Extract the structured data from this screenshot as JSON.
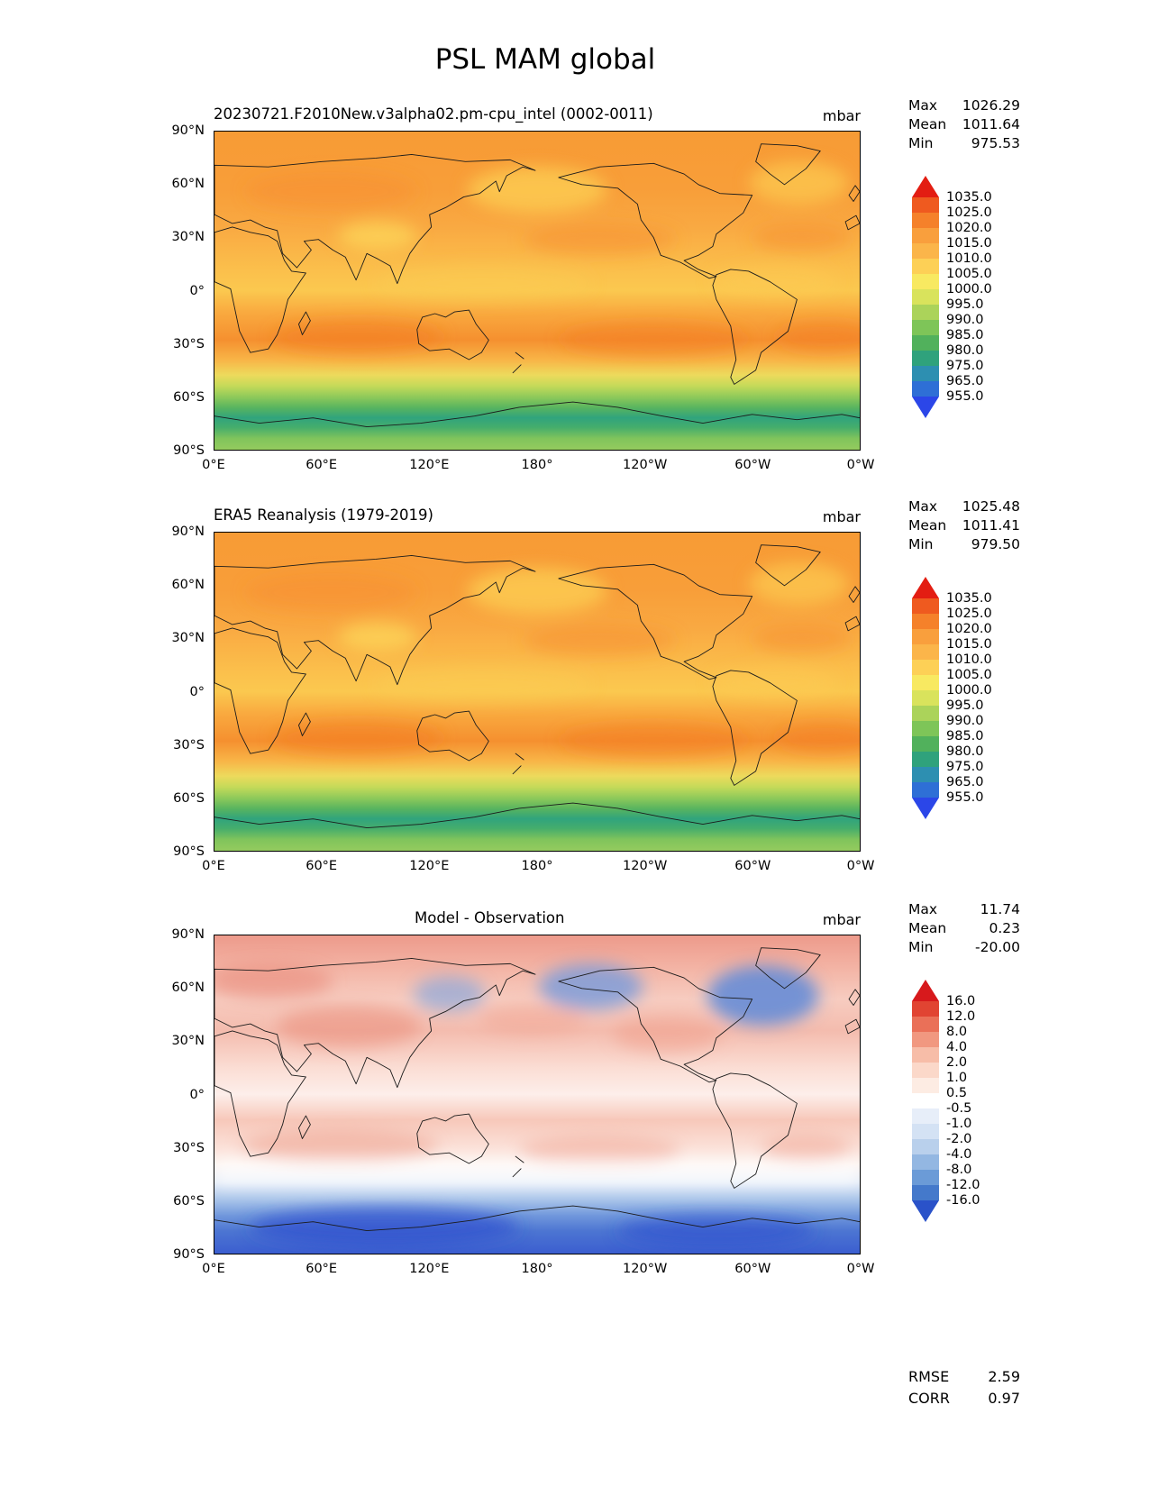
{
  "page": {
    "title": "PSL MAM global"
  },
  "axes": {
    "x_ticks": [
      "0°E",
      "60°E",
      "120°E",
      "180°",
      "120°W",
      "60°W",
      "0°W"
    ],
    "y_ticks": [
      "90°N",
      "60°N",
      "30°N",
      "0°",
      "30°S",
      "60°S",
      "90°S"
    ]
  },
  "panels": [
    {
      "title": "20230721.F2010New.v3alpha02.pm-cpu_intel (0002-0011)",
      "units": "mbar",
      "stats": [
        {
          "label": "Max",
          "value": "1026.29"
        },
        {
          "label": "Mean",
          "value": "1011.64"
        },
        {
          "label": "Min",
          "value": "975.53"
        }
      ],
      "colorbar": {
        "levels": [
          "1035.0",
          "1025.0",
          "1020.0",
          "1015.0",
          "1010.0",
          "1005.0",
          "1000.0",
          "995.0",
          "990.0",
          "985.0",
          "980.0",
          "975.0",
          "965.0",
          "955.0"
        ],
        "colors": [
          "#e31d12",
          "#ef5a1f",
          "#f5812a",
          "#f99f3d",
          "#fbb54a",
          "#fdd056",
          "#f8e961",
          "#d9e35c",
          "#abd35a",
          "#7ec558",
          "#51b15c",
          "#2fa27c",
          "#2d8fb1",
          "#2e6fd6",
          "#2b46e8"
        ]
      }
    },
    {
      "title": "ERA5 Reanalysis (1979-2019)",
      "units": "mbar",
      "stats": [
        {
          "label": "Max",
          "value": "1025.48"
        },
        {
          "label": "Mean",
          "value": "1011.41"
        },
        {
          "label": "Min",
          "value": "979.50"
        }
      ],
      "colorbar": {
        "levels": [
          "1035.0",
          "1025.0",
          "1020.0",
          "1015.0",
          "1010.0",
          "1005.0",
          "1000.0",
          "995.0",
          "990.0",
          "985.0",
          "980.0",
          "975.0",
          "965.0",
          "955.0"
        ],
        "colors": [
          "#e31d12",
          "#ef5a1f",
          "#f5812a",
          "#f99f3d",
          "#fbb54a",
          "#fdd056",
          "#f8e961",
          "#d9e35c",
          "#abd35a",
          "#7ec558",
          "#51b15c",
          "#2fa27c",
          "#2d8fb1",
          "#2e6fd6",
          "#2b46e8"
        ]
      }
    },
    {
      "title": "Model - Observation",
      "units": "mbar",
      "stats": [
        {
          "label": "Max",
          "value": "11.74"
        },
        {
          "label": "Mean",
          "value": "0.23"
        },
        {
          "label": "Min",
          "value": "-20.00"
        }
      ],
      "colorbar": {
        "levels": [
          "16.0",
          "12.0",
          "8.0",
          "4.0",
          "2.0",
          "1.0",
          "0.5",
          "-0.5",
          "-1.0",
          "-2.0",
          "-4.0",
          "-8.0",
          "-12.0",
          "-16.0"
        ],
        "colors": [
          "#d7191c",
          "#e14432",
          "#ea7058",
          "#f19880",
          "#f7bda8",
          "#fbd8c9",
          "#fdece3",
          "#ffffff",
          "#e7eef9",
          "#d4e2f4",
          "#b9d0ec",
          "#93b7e2",
          "#6b9bd7",
          "#4479cb",
          "#2a52c9"
        ]
      },
      "metrics": [
        {
          "label": "RMSE",
          "value": "2.59"
        },
        {
          "label": "CORR",
          "value": "0.97"
        }
      ]
    }
  ],
  "chart_data": [
    {
      "type": "heatmap",
      "subtype": "filled-contour-global-map",
      "title": "20230721.F2010New.v3alpha02.pm-cpu_intel (0002-0011)",
      "variable": "PSL",
      "season": "MAM",
      "units": "mbar",
      "projection": "equirectangular",
      "lon_range": [
        0,
        360
      ],
      "lat_range": [
        -90,
        90
      ],
      "x_tick_labels": [
        "0°E",
        "60°E",
        "120°E",
        "180°",
        "120°W",
        "60°W",
        "0°W"
      ],
      "y_tick_labels": [
        "90°N",
        "60°N",
        "30°N",
        "0°",
        "30°S",
        "60°S",
        "90°S"
      ],
      "contour_levels": [
        955,
        965,
        975,
        980,
        985,
        990,
        995,
        1000,
        1005,
        1010,
        1015,
        1020,
        1025,
        1035
      ],
      "stats": {
        "max": 1026.29,
        "mean": 1011.64,
        "min": 975.53
      },
      "approx_zonal_mean": {
        "lat": [
          90,
          60,
          30,
          0,
          -30,
          -45,
          -60,
          -70,
          -80,
          -90
        ],
        "value_mbar": [
          1014,
          1014,
          1017,
          1009,
          1018,
          1005,
          987,
          977,
          984,
          991
        ]
      }
    },
    {
      "type": "heatmap",
      "subtype": "filled-contour-global-map",
      "title": "ERA5 Reanalysis (1979-2019)",
      "variable": "PSL",
      "season": "MAM",
      "units": "mbar",
      "projection": "equirectangular",
      "lon_range": [
        0,
        360
      ],
      "lat_range": [
        -90,
        90
      ],
      "x_tick_labels": [
        "0°E",
        "60°E",
        "120°E",
        "180°",
        "120°W",
        "60°W",
        "0°W"
      ],
      "y_tick_labels": [
        "90°N",
        "60°N",
        "30°N",
        "0°",
        "30°S",
        "60°S",
        "90°S"
      ],
      "contour_levels": [
        955,
        965,
        975,
        980,
        985,
        990,
        995,
        1000,
        1005,
        1010,
        1015,
        1020,
        1025,
        1035
      ],
      "stats": {
        "max": 1025.48,
        "mean": 1011.41,
        "min": 979.5
      },
      "approx_zonal_mean": {
        "lat": [
          90,
          60,
          30,
          0,
          -30,
          -45,
          -60,
          -70,
          -80,
          -90
        ],
        "value_mbar": [
          1013,
          1013,
          1016,
          1009,
          1017,
          1004,
          986,
          979,
          986,
          992
        ]
      }
    },
    {
      "type": "heatmap",
      "subtype": "filled-contour-global-map",
      "title": "Model - Observation",
      "variable": "PSL difference (model minus ERA5)",
      "season": "MAM",
      "units": "mbar",
      "projection": "equirectangular",
      "lon_range": [
        0,
        360
      ],
      "lat_range": [
        -90,
        90
      ],
      "x_tick_labels": [
        "0°E",
        "60°E",
        "120°E",
        "180°",
        "120°W",
        "60°W",
        "0°W"
      ],
      "y_tick_labels": [
        "90°N",
        "60°N",
        "30°N",
        "0°",
        "30°S",
        "60°S",
        "90°S"
      ],
      "contour_levels": [
        -16,
        -12,
        -8,
        -4,
        -2,
        -1,
        -0.5,
        0.5,
        1,
        2,
        4,
        8,
        12,
        16
      ],
      "stats": {
        "max": 11.74,
        "mean": 0.23,
        "min": -20.0
      },
      "metrics": {
        "rmse": 2.59,
        "corr": 0.97
      },
      "approx_zonal_mean": {
        "lat": [
          90,
          60,
          30,
          0,
          -30,
          -45,
          -60,
          -75,
          -90
        ],
        "value_mbar": [
          2,
          1,
          2,
          0.5,
          1.5,
          0,
          -4,
          -13,
          -7
        ]
      }
    }
  ]
}
